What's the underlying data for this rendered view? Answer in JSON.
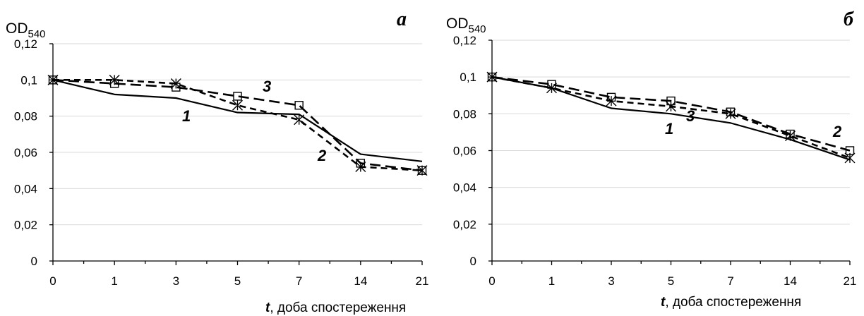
{
  "chart_data": [
    {
      "type": "line",
      "panel_label": "а",
      "ylabel": "OD",
      "ylabel_sub": "540",
      "xlabel_var": "t",
      "xlabel_text": ", доба спостереження",
      "categories": [
        "0",
        "1",
        "3",
        "5",
        "7",
        "14",
        "21"
      ],
      "ylim": [
        0,
        0.12
      ],
      "yticks": [
        "0",
        "0,02",
        "0,04",
        "0,06",
        "0,08",
        "0,1",
        "0,12"
      ],
      "grid": true,
      "series": [
        {
          "name": "1",
          "values": [
            0.1,
            0.092,
            0.09,
            0.082,
            0.081,
            0.059,
            0.055
          ],
          "marker": "none",
          "dash": "solid"
        },
        {
          "name": "2",
          "values": [
            0.1,
            0.1,
            0.098,
            0.086,
            0.078,
            0.052,
            0.05
          ],
          "marker": "asterisk",
          "dash": "dashed"
        },
        {
          "name": "3",
          "values": [
            0.1,
            0.098,
            0.096,
            0.091,
            0.086,
            0.054,
            0.05
          ],
          "marker": "square",
          "dash": "longdash"
        }
      ]
    },
    {
      "type": "line",
      "panel_label": "б",
      "ylabel": "OD",
      "ylabel_sub": "540",
      "xlabel_var": "t",
      "xlabel_text": ", доба спостереження",
      "categories": [
        "0",
        "1",
        "3",
        "5",
        "7",
        "14",
        "21"
      ],
      "ylim": [
        0,
        0.12
      ],
      "yticks": [
        "0",
        "0,02",
        "0,04",
        "0,06",
        "0,08",
        "0,1",
        "0,12"
      ],
      "grid": true,
      "series": [
        {
          "name": "1",
          "values": [
            0.1,
            0.094,
            0.083,
            0.08,
            0.075,
            0.066,
            0.055
          ],
          "marker": "none",
          "dash": "solid"
        },
        {
          "name": "2",
          "values": [
            0.1,
            0.094,
            0.087,
            0.084,
            0.08,
            0.068,
            0.056
          ],
          "marker": "asterisk",
          "dash": "dashed"
        },
        {
          "name": "3",
          "values": [
            0.1,
            0.096,
            0.089,
            0.087,
            0.081,
            0.069,
            0.06
          ],
          "marker": "square",
          "dash": "longdash"
        }
      ]
    }
  ]
}
